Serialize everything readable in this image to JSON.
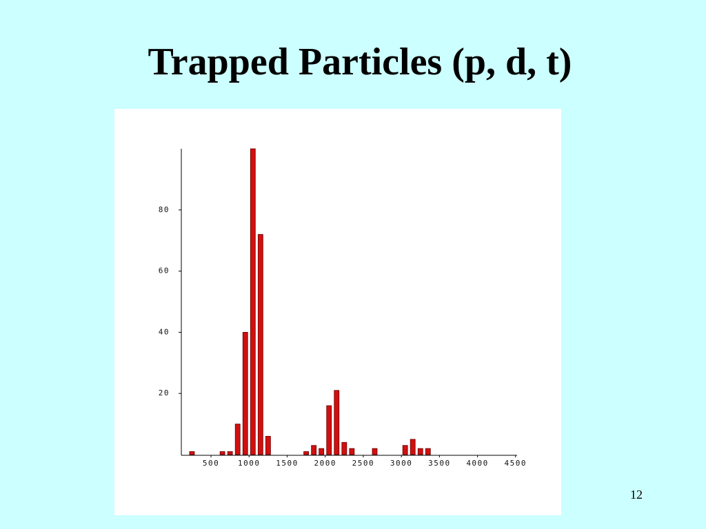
{
  "title": "Trapped Particles (p, d, t)",
  "page_number": "12",
  "chart_data": {
    "type": "bar",
    "x": [
      250,
      650,
      750,
      850,
      950,
      1050,
      1150,
      1250,
      1750,
      1850,
      1950,
      2050,
      2150,
      2250,
      2350,
      2650,
      3050,
      3150,
      3250,
      3350
    ],
    "values": [
      1,
      1,
      1,
      10,
      40,
      100,
      72,
      6,
      1,
      3,
      2,
      16,
      21,
      4,
      2,
      2,
      3,
      5,
      2,
      2
    ],
    "color": "#d10f0f",
    "xlim": [
      110,
      4520
    ],
    "xticks": [
      500,
      1000,
      1500,
      2000,
      2500,
      3000,
      3500,
      4000,
      4500
    ],
    "ylim": [
      0,
      100
    ],
    "yticks": [
      20,
      40,
      60,
      80
    ],
    "grid": false
  }
}
